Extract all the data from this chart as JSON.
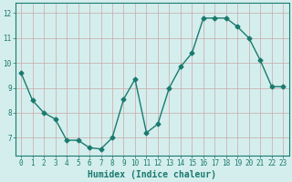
{
  "x": [
    0,
    1,
    2,
    3,
    4,
    5,
    6,
    7,
    8,
    9,
    10,
    11,
    12,
    13,
    14,
    15,
    16,
    17,
    18,
    19,
    20,
    21,
    22,
    23
  ],
  "y": [
    9.6,
    8.5,
    8.0,
    7.75,
    6.9,
    6.9,
    6.6,
    6.55,
    7.0,
    8.55,
    9.35,
    7.2,
    7.55,
    9.0,
    9.85,
    10.4,
    11.8,
    11.8,
    11.8,
    11.45,
    11.0,
    10.1,
    9.05,
    9.05
  ],
  "line_color": "#1a7a6e",
  "marker": "D",
  "marker_size": 2.5,
  "bg_color": "#d4eeed",
  "grid_color": "#c8a8a8",
  "xlabel": "Humidex (Indice chaleur)",
  "ylabel": "",
  "title": "",
  "ylim": [
    6.3,
    12.4
  ],
  "xlim": [
    -0.5,
    23.5
  ],
  "yticks": [
    7,
    8,
    9,
    10,
    11,
    12
  ],
  "xticks": [
    0,
    1,
    2,
    3,
    4,
    5,
    6,
    7,
    8,
    9,
    10,
    11,
    12,
    13,
    14,
    15,
    16,
    17,
    18,
    19,
    20,
    21,
    22,
    23
  ],
  "tick_fontsize": 5.5,
  "xlabel_fontsize": 7.0
}
